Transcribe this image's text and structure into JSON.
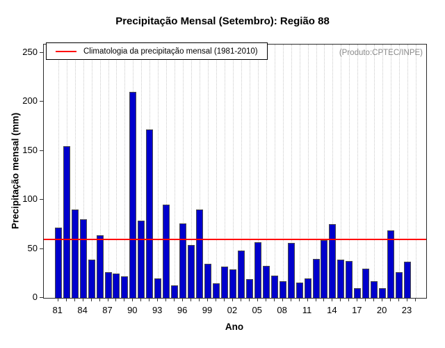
{
  "annotation": "(Produto:CPTEC/INPE)",
  "legend": {
    "label": "Climatologia da precipitação mensal (1981-2010)"
  },
  "chart_data": {
    "type": "bar",
    "title": "Precipitação Mensal (Setembro): Região 88",
    "xlabel": "Ano",
    "ylabel": "Precipitação mensal (mm)",
    "ylim": [
      0,
      258.5
    ],
    "yticks": [
      0,
      50,
      100,
      150,
      200,
      250
    ],
    "x_labeled_ticks": [
      "81",
      "84",
      "87",
      "90",
      "93",
      "96",
      "99",
      "02",
      "05",
      "08",
      "11",
      "14",
      "17",
      "20",
      "23"
    ],
    "label_every_n_years": 3,
    "grid": "vertical-dotted",
    "legend_position": "top-left",
    "climatology_value": 59,
    "years": [
      1981,
      1982,
      1983,
      1984,
      1985,
      1986,
      1987,
      1988,
      1989,
      1990,
      1991,
      1992,
      1993,
      1994,
      1995,
      1996,
      1997,
      1998,
      1999,
      2000,
      2001,
      2002,
      2003,
      2004,
      2005,
      2006,
      2007,
      2008,
      2009,
      2010,
      2011,
      2012,
      2013,
      2014,
      2015,
      2016,
      2017,
      2018,
      2019,
      2020,
      2021,
      2022,
      2023
    ],
    "values": [
      72,
      155,
      90,
      80,
      39,
      64,
      26,
      25,
      22,
      210,
      79,
      172,
      20,
      95,
      13,
      76,
      54,
      90,
      35,
      15,
      32,
      29,
      48,
      19,
      57,
      33,
      23,
      17,
      56,
      16,
      20,
      40,
      59,
      75,
      39,
      38,
      10,
      30,
      17,
      10,
      69,
      26,
      37
    ],
    "colors": {
      "bar": "#0000cc",
      "bar_border": "#4a4a4a",
      "climatology_line": "#ff0000",
      "grid": "#c9c9c9",
      "annotation_text": "#8a8a8a"
    }
  }
}
